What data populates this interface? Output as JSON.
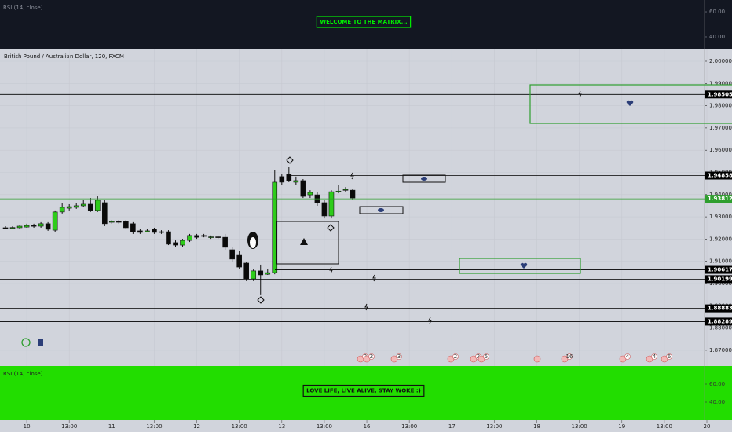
{
  "chart_data": [
    {
      "type": "indicator",
      "title": "RSI (14, close)",
      "annotation": "WELCOME TO THE MATRIX...",
      "ylim": [
        30.6,
        69.4
      ],
      "yticks": [
        {
          "value": 60,
          "label": "60.00"
        },
        {
          "value": 40,
          "label": "40.00"
        }
      ]
    },
    {
      "type": "candlestick",
      "title": "British Pound / Australian Dollar, 120, FXCM",
      "x": [
        -3,
        -2,
        -1,
        0,
        1,
        2,
        3,
        4,
        5,
        6,
        7,
        8,
        9,
        10,
        11,
        12,
        13,
        14,
        15,
        16,
        17,
        18,
        19,
        20,
        21,
        22,
        23,
        24,
        25,
        26,
        27,
        28,
        29,
        30,
        31,
        32,
        33,
        34,
        35,
        36,
        37,
        38,
        39,
        40,
        41,
        42,
        43,
        44,
        45,
        46
      ],
      "open": [
        1.9251,
        1.9251,
        1.9251,
        1.9254,
        1.9261,
        1.9258,
        1.9269,
        1.924,
        1.9322,
        1.9339,
        1.9343,
        1.935,
        1.9357,
        1.9329,
        1.9364,
        1.9276,
        1.9279,
        1.9279,
        1.9269,
        1.9237,
        1.9233,
        1.9244,
        1.923,
        1.9233,
        1.9184,
        1.9173,
        1.9194,
        1.9216,
        1.9216,
        1.9208,
        1.921,
        1.9208,
        1.9152,
        1.9127,
        1.9092,
        1.9021,
        1.9057,
        1.9042,
        1.9049,
        1.9481,
        1.9491,
        1.9456,
        1.9463,
        1.9399,
        1.9399,
        1.9364,
        1.9304,
        1.9413,
        1.942,
        1.942
      ],
      "high": [
        1.9258,
        1.9258,
        1.9261,
        1.9269,
        1.9269,
        1.9276,
        1.9276,
        1.9329,
        1.9364,
        1.9357,
        1.9364,
        1.9375,
        1.9385,
        1.9392,
        1.9375,
        1.9286,
        1.9286,
        1.9286,
        1.9276,
        1.9244,
        1.9244,
        1.9251,
        1.924,
        1.924,
        1.9194,
        1.9201,
        1.9223,
        1.9223,
        1.9223,
        1.9216,
        1.9216,
        1.9223,
        1.9166,
        1.9145,
        1.9099,
        1.9064,
        1.9085,
        1.9064,
        1.9509,
        1.9491,
        1.9523,
        1.9481,
        1.947,
        1.942,
        1.9413,
        1.9375,
        1.942,
        1.9445,
        1.9434,
        1.9427
      ],
      "low": [
        1.9244,
        1.9244,
        1.9247,
        1.9251,
        1.9251,
        1.9251,
        1.9237,
        1.9233,
        1.9315,
        1.9329,
        1.9336,
        1.9343,
        1.9322,
        1.9322,
        1.9258,
        1.9269,
        1.9269,
        1.9244,
        1.9223,
        1.9223,
        1.923,
        1.9223,
        1.9223,
        1.9173,
        1.9166,
        1.9166,
        1.9187,
        1.9201,
        1.9208,
        1.9201,
        1.9201,
        1.9152,
        1.9099,
        1.9064,
        1.9011,
        1.9011,
        1.8951,
        1.9039,
        1.9042,
        1.9445,
        1.9456,
        1.9445,
        1.9385,
        1.9385,
        1.935,
        1.9293,
        1.9293,
        1.9406,
        1.941,
        1.9378
      ],
      "close": [
        1.9247,
        1.9252,
        1.9258,
        1.9261,
        1.9258,
        1.9269,
        1.9244,
        1.9322,
        1.9343,
        1.9346,
        1.935,
        1.9357,
        1.9329,
        1.9375,
        1.9269,
        1.9279,
        1.9276,
        1.9251,
        1.9233,
        1.923,
        1.9237,
        1.923,
        1.9233,
        1.9177,
        1.9173,
        1.9194,
        1.9216,
        1.9208,
        1.9212,
        1.921,
        1.9208,
        1.9163,
        1.911,
        1.9074,
        1.9021,
        1.9057,
        1.9039,
        1.9049,
        1.9456,
        1.9456,
        1.9463,
        1.9463,
        1.9392,
        1.941,
        1.9364,
        1.9304,
        1.9413,
        1.9416,
        1.9423,
        1.9385
      ],
      "up_color": "#2ecc1a",
      "down_color": "#0a0a0a",
      "xlim": [
        -3.7778,
        95.6667
      ],
      "xticks": [
        {
          "value": 0,
          "label": "10"
        },
        {
          "value": 6,
          "label": "13:00"
        },
        {
          "value": 12,
          "label": "11"
        },
        {
          "value": 18,
          "label": "13:00"
        },
        {
          "value": 24,
          "label": "12"
        },
        {
          "value": 30,
          "label": "13:00"
        },
        {
          "value": 36,
          "label": "13"
        },
        {
          "value": 42,
          "label": "13:00"
        },
        {
          "value": 48,
          "label": "16"
        },
        {
          "value": 54,
          "label": "13:00"
        },
        {
          "value": 60,
          "label": "17"
        },
        {
          "value": 66,
          "label": "13:00"
        },
        {
          "value": 72,
          "label": "18"
        },
        {
          "value": 78,
          "label": "13:00"
        },
        {
          "value": 84,
          "label": "19"
        },
        {
          "value": 90,
          "label": "13:00"
        },
        {
          "value": 96,
          "label": "20"
        }
      ],
      "ylim": [
        1.8629,
        2.00565
      ],
      "yticks": [
        {
          "value": 2,
          "label": "2.00000"
        },
        {
          "value": 1.99,
          "label": "1.99000"
        },
        {
          "value": 1.98,
          "label": "1.98000"
        },
        {
          "value": 1.97,
          "label": "1.97000"
        },
        {
          "value": 1.96,
          "label": "1.96000"
        },
        {
          "value": 1.95,
          "label": "1.95000"
        },
        {
          "value": 1.94,
          "label": "1.94000"
        },
        {
          "value": 1.93,
          "label": "1.93000"
        },
        {
          "value": 1.92,
          "label": "1.92000"
        },
        {
          "value": 1.91,
          "label": "1.91000"
        },
        {
          "value": 1.9,
          "label": "1.90000"
        },
        {
          "value": 1.89,
          "label": "1.89000"
        },
        {
          "value": 1.88,
          "label": "1.88000"
        },
        {
          "value": 1.87,
          "label": "1.87000"
        }
      ],
      "grid": true,
      "price_lines": [
        {
          "value": 1.98505,
          "color": "#000000"
        },
        {
          "value": 1.94858,
          "color": "#000000"
        },
        {
          "value": 1.93812,
          "color": "#2e9e2e"
        },
        {
          "value": 1.90617,
          "color": "#000000"
        },
        {
          "value": 1.90199,
          "color": "#000000"
        },
        {
          "value": 1.88883,
          "color": "#000000"
        },
        {
          "value": 1.88289,
          "color": "#000000"
        }
      ],
      "events": [
        2,
        2,
        3,
        2,
        2,
        5,
        16,
        4,
        4,
        6
      ]
    },
    {
      "type": "indicator",
      "title": "RSI (14, close)",
      "annotation": "LOVE LIFE, LIVE ALIVE, STAY WOKE :)",
      "ylim": [
        20,
        80
      ],
      "yticks": [
        {
          "value": 60,
          "label": "60.00"
        },
        {
          "value": 40,
          "label": "40.00"
        }
      ]
    }
  ]
}
